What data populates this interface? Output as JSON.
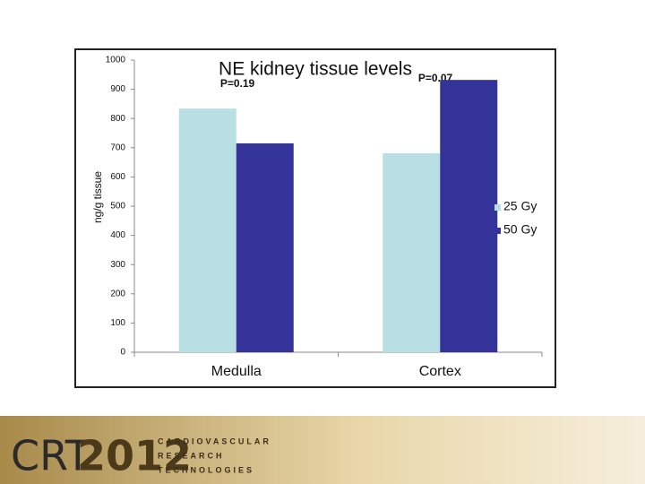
{
  "chart_data": {
    "type": "bar",
    "title": "NE kidney tissue levels",
    "y_label": "ng/g tissue",
    "annotations": [
      "P=0.19",
      "P=0.07"
    ],
    "categories": [
      "Medulla",
      "Cortex"
    ],
    "series": [
      {
        "name": "25 Gy",
        "color": "#b8dfe4",
        "values": [
          834,
          681
        ]
      },
      {
        "name": "50 Gy",
        "color": "#333399",
        "values": [
          715,
          932
        ]
      }
    ],
    "ylim": [
      0,
      1000
    ],
    "yticks": [
      0,
      100,
      200,
      300,
      400,
      500,
      600,
      700,
      800,
      900,
      1000
    ],
    "grid": false,
    "legend": "right"
  },
  "footer": {
    "logo_a": "CRT",
    "logo_b": "2012",
    "lines": [
      "CARDIOVASCULAR",
      "RESEARCH",
      "TECHNOLOGIES"
    ]
  }
}
